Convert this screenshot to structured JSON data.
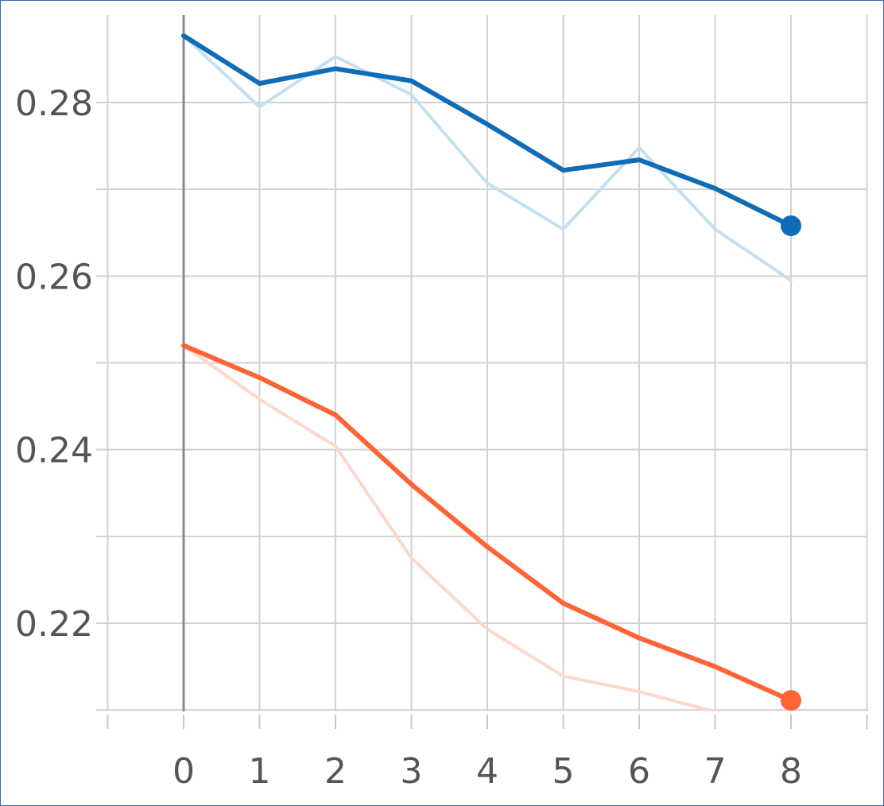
{
  "chart_data": {
    "type": "line",
    "title": "",
    "xlabel": "",
    "ylabel": "",
    "x": [
      0,
      1,
      2,
      3,
      4,
      5,
      6,
      7,
      8
    ],
    "xlim": [
      -1,
      9
    ],
    "ylim": [
      0.21,
      0.289
    ],
    "x_ticks": [
      "0",
      "1",
      "2",
      "3",
      "4",
      "5",
      "6",
      "7",
      "8"
    ],
    "y_ticks": [
      {
        "value": 0.22,
        "label": "0.22"
      },
      {
        "value": 0.24,
        "label": "0.24"
      },
      {
        "value": 0.26,
        "label": "0.26"
      },
      {
        "value": 0.28,
        "label": "0.28"
      }
    ],
    "y_minor_gridlines": [
      0.21,
      0.23,
      0.25,
      0.27
    ],
    "grid": true,
    "legend": "none",
    "series": [
      {
        "color": "#0f6cb6",
        "style": "smoothed",
        "values": [
          0.2877,
          0.2822,
          0.2839,
          0.2825,
          0.2775,
          0.2722,
          0.2734,
          0.2701,
          0.2658
        ]
      },
      {
        "color": "#c4dff0",
        "style": "raw",
        "values": [
          0.2877,
          0.2795,
          0.2853,
          0.2809,
          0.2707,
          0.2654,
          0.2748,
          0.2654,
          0.2595
        ]
      },
      {
        "color": "#ff6438",
        "style": "smoothed",
        "values": [
          0.252,
          0.2483,
          0.244,
          0.236,
          0.2288,
          0.2223,
          0.2183,
          0.215,
          0.2111
        ]
      },
      {
        "color": "#fdd7cc",
        "style": "raw",
        "values": [
          0.252,
          0.2458,
          0.2404,
          0.2275,
          0.2193,
          0.2139,
          0.2121,
          0.2098,
          0.2082
        ]
      }
    ]
  }
}
